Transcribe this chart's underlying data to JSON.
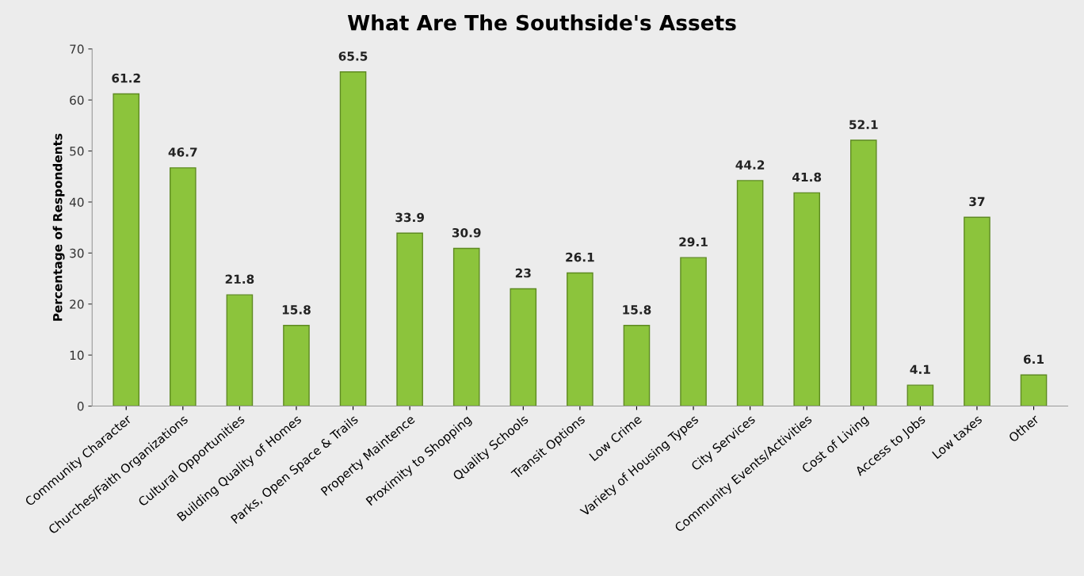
{
  "chart_data": {
    "type": "bar",
    "title": "What Are The Southside's Assets",
    "ylabel": "Percentage of Respondents",
    "categories": [
      "Community Character",
      "Churches/Faith Organizations",
      "Cultural Opportunities",
      "Building Quality of Homes",
      "Parks, Open Space & Trails",
      "Property Maintence",
      "Proximity to Shopping",
      "Quality Schools",
      "Transit Options",
      "Low Crime",
      "Variety of Housing Types",
      "City Services",
      "Community Events/Activities",
      "Cost of Living",
      "Access to Jobs",
      "Low taxes",
      "Other"
    ],
    "values": [
      61.2,
      46.7,
      21.8,
      15.8,
      65.5,
      33.9,
      30.9,
      23,
      26.1,
      15.8,
      29.1,
      44.2,
      41.8,
      52.1,
      4.1,
      37,
      6.1
    ],
    "color": "#8cc43c",
    "ylim": [
      0,
      70
    ],
    "yticks": [
      0,
      10,
      20,
      30,
      40,
      50,
      60,
      70
    ],
    "grid": false,
    "data_labels": true
  }
}
